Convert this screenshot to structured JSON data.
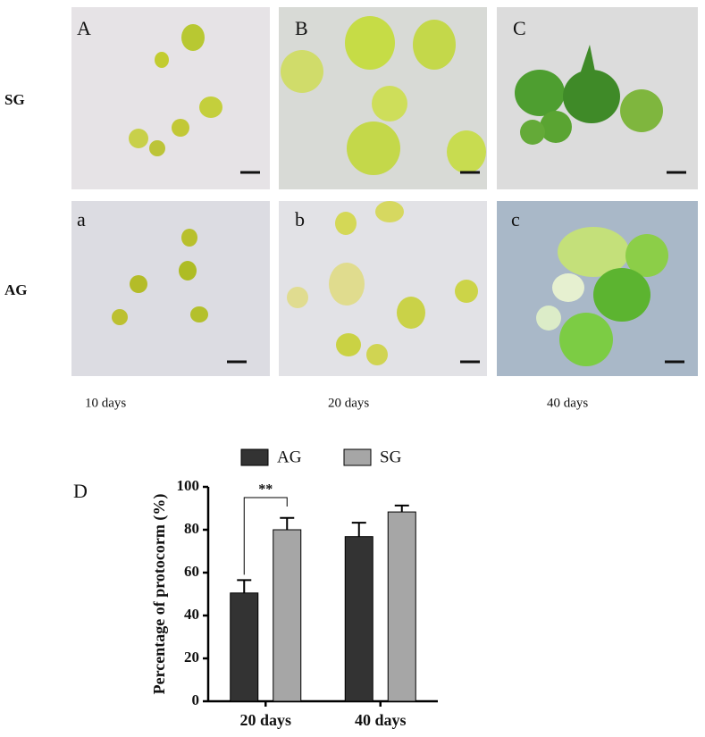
{
  "photo_panels": {
    "row_labels": [
      "SG",
      "AG"
    ],
    "panel_labels": [
      [
        "A",
        "B",
        "C"
      ],
      [
        "a",
        "b",
        "c"
      ]
    ],
    "column_labels": [
      "10 days",
      "20 days",
      "40 days"
    ]
  },
  "chart_data": {
    "type": "bar",
    "panel_label": "D",
    "y_label": "Percentage of protocorm (%)",
    "annotation": "**",
    "categories": [
      "20 days",
      "40 days"
    ],
    "series": [
      {
        "name": "AG",
        "color": "#333333",
        "values": [
          50.5,
          76.8
        ],
        "errors": [
          6,
          6.5
        ]
      },
      {
        "name": "SG",
        "color": "#a6a6a6",
        "values": [
          80,
          88.3
        ],
        "errors": [
          5.5,
          3
        ]
      }
    ],
    "ylim": [
      0,
      100
    ],
    "yticks": [
      0,
      20,
      40,
      60,
      80,
      100
    ]
  }
}
